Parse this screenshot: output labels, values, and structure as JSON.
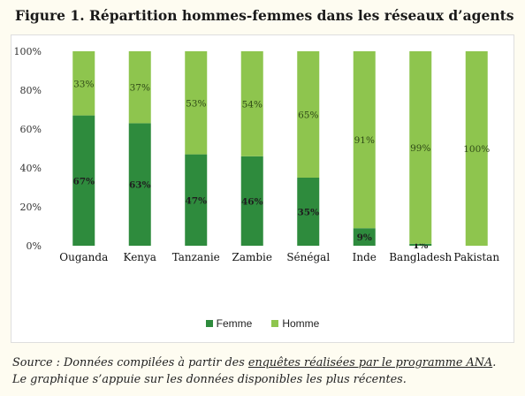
{
  "figure_title": "Figure 1. Répartition hommes-femmes dans les réseaux d’agents",
  "source": {
    "prefix": "Source : Données compilées à partir des ",
    "link_text": "enquêtes réalisées par le programme ANA",
    "suffix": ".",
    "line2": "Le graphique s’appuie sur les données disponibles les plus récentes."
  },
  "colors": {
    "femme": "#2e8b3d",
    "homme": "#8ec54e",
    "axis_text": "#333333",
    "gridline": "#d9d9d9"
  },
  "chart_data": {
    "type": "bar",
    "stacked": true,
    "percent_stacked": true,
    "categories": [
      "Ouganda",
      "Kenya",
      "Tanzanie",
      "Zambie",
      "Sénégal",
      "Inde",
      "Bangladesh",
      "Pakistan"
    ],
    "series": [
      {
        "name": "Femme",
        "values": [
          67,
          63,
          47,
          46,
          35,
          9,
          1,
          0
        ],
        "labels": [
          "67%",
          "63%",
          "47%",
          "46%",
          "35%",
          "9%",
          "1%",
          ""
        ]
      },
      {
        "name": "Homme",
        "values": [
          33,
          37,
          53,
          54,
          65,
          91,
          99,
          100
        ],
        "labels": [
          "33%",
          "37%",
          "53%",
          "54%",
          "65%",
          "91%",
          "99%",
          "100%"
        ]
      }
    ],
    "y_ticks": [
      "0%",
      "20%",
      "40%",
      "60%",
      "80%",
      "100%"
    ],
    "ylim": [
      0,
      100
    ],
    "legend": {
      "position": "bottom",
      "entries": [
        "Femme",
        "Homme"
      ]
    },
    "grid": false
  }
}
